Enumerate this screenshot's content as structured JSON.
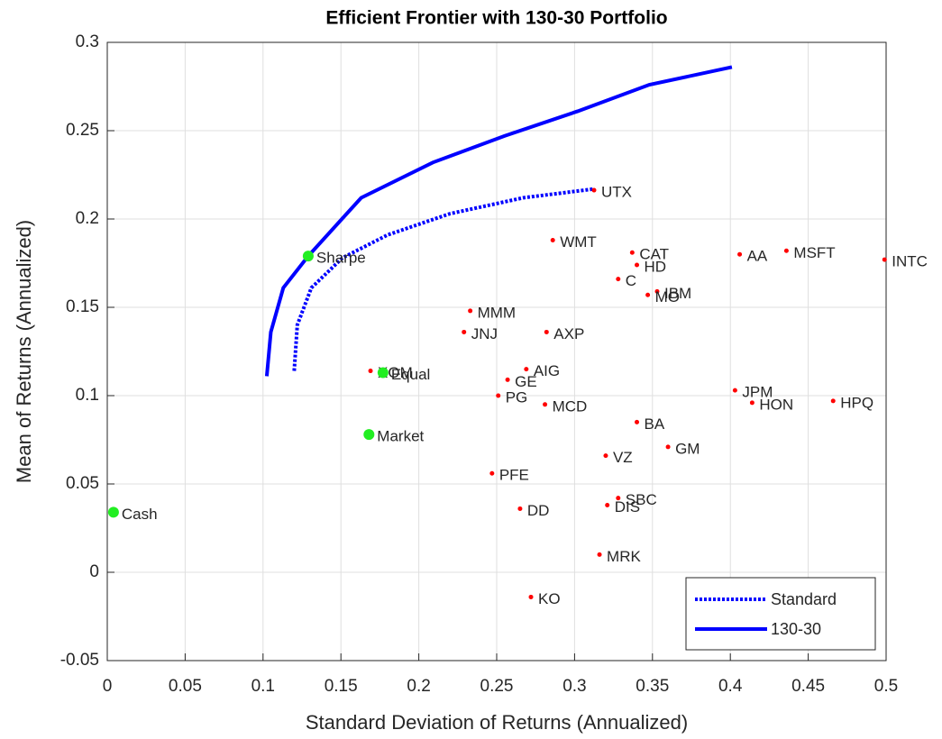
{
  "chart_data": {
    "type": "scatter",
    "title": "Efficient Frontier with 130-30 Portfolio",
    "xlabel": "Standard Deviation of Returns (Annualized)",
    "ylabel": "Mean of Returns (Annualized)",
    "xlim": [
      0,
      0.5
    ],
    "ylim": [
      -0.05,
      0.3
    ],
    "xticks": [
      0,
      0.05,
      0.1,
      0.15,
      0.2,
      0.25,
      0.3,
      0.35,
      0.4,
      0.45,
      0.5
    ],
    "yticks": [
      -0.05,
      0,
      0.05,
      0.1,
      0.15,
      0.2,
      0.25,
      0.3
    ],
    "grid": true,
    "legend": "southeast",
    "assets": {
      "color": "#ff0000",
      "labels": [
        "UTX",
        "WMT",
        "CAT",
        "HD",
        "C",
        "IBM",
        "MO",
        "AA",
        "MSFT",
        "INTC",
        "MMM",
        "JNJ",
        "AXP",
        "AIG",
        "GE",
        "XOM",
        "PG",
        "MCD",
        "JPM",
        "HON",
        "HPQ",
        "BA",
        "GM",
        "VZ",
        "PFE",
        "SBC",
        "DIS",
        "DD",
        "MRK",
        "KO"
      ],
      "x": [
        0.3125,
        0.286,
        0.337,
        0.34,
        0.328,
        0.353,
        0.347,
        0.406,
        0.436,
        0.499,
        0.233,
        0.229,
        0.282,
        0.269,
        0.257,
        0.169,
        0.251,
        0.281,
        0.403,
        0.414,
        0.466,
        0.34,
        0.36,
        0.32,
        0.247,
        0.328,
        0.321,
        0.265,
        0.316,
        0.272
      ],
      "y": [
        0.2163,
        0.188,
        0.181,
        0.174,
        0.166,
        0.159,
        0.157,
        0.18,
        0.182,
        0.177,
        0.148,
        0.136,
        0.136,
        0.115,
        0.109,
        0.114,
        0.1,
        0.095,
        0.103,
        0.096,
        0.097,
        0.085,
        0.071,
        0.066,
        0.056,
        0.042,
        0.038,
        0.036,
        0.01,
        -0.014
      ]
    },
    "portfolios": {
      "color": "#22ee22",
      "labels": [
        "Sharpe",
        "Equal",
        "Market",
        "Cash"
      ],
      "x": [
        0.129,
        0.177,
        0.168,
        0.004
      ],
      "y": [
        0.179,
        0.113,
        0.078,
        0.034
      ]
    },
    "series": [
      {
        "name": "Standard",
        "color": "#0000ff",
        "linestyle": "dotted",
        "x": [
          0.12,
          0.122,
          0.131,
          0.151,
          0.18,
          0.22,
          0.267,
          0.3125
        ],
        "y": [
          0.114,
          0.14,
          0.161,
          0.178,
          0.191,
          0.203,
          0.212,
          0.217
        ]
      },
      {
        "name": "130-30",
        "color": "#0000ff",
        "linestyle": "solid",
        "x": [
          0.1024,
          0.105,
          0.113,
          0.129,
          0.163,
          0.209,
          0.255,
          0.302,
          0.348,
          0.401
        ],
        "y": [
          0.111,
          0.136,
          0.161,
          0.179,
          0.212,
          0.232,
          0.247,
          0.261,
          0.276,
          0.286
        ]
      }
    ]
  }
}
